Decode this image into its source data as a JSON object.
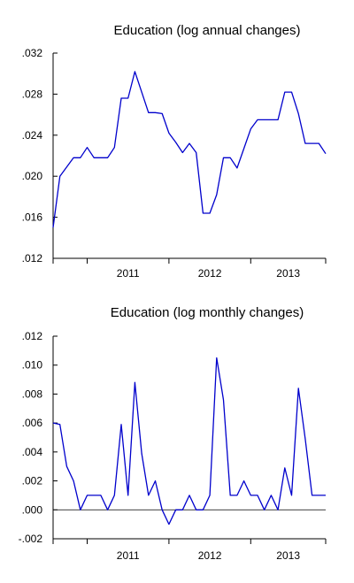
{
  "chart_data": [
    {
      "type": "line",
      "title": "Education (log annual changes)",
      "xlabel": "",
      "ylabel": "",
      "x_start": "2010-08",
      "frequency": "monthly",
      "x_tick_labels": [
        "2011",
        "2012",
        "2013"
      ],
      "y_tick_labels": [
        ".012",
        ".016",
        ".020",
        ".024",
        ".028",
        ".032"
      ],
      "ylim": [
        0.012,
        0.032
      ],
      "grid": false,
      "zero_line": false,
      "color": "#0000cc",
      "series": [
        {
          "values": [
            0.015,
            0.02,
            0.0209,
            0.0218,
            0.0218,
            0.0228,
            0.0218,
            0.0218,
            0.0218,
            0.0228,
            0.0276,
            0.0276,
            0.0302,
            0.0282,
            0.0262,
            0.0262,
            0.0261,
            0.0242,
            0.0233,
            0.0223,
            0.0232,
            0.0223,
            0.0164,
            0.0164,
            0.0182,
            0.0218,
            0.0218,
            0.0208,
            0.0227,
            0.0246,
            0.0255,
            0.0255,
            0.0255,
            0.0255,
            0.0282,
            0.0282,
            0.0261,
            0.0232,
            0.0232,
            0.0232,
            0.0222
          ]
        }
      ]
    },
    {
      "type": "line",
      "title": "Education (log monthly changes)",
      "xlabel": "",
      "ylabel": "",
      "x_start": "2010-08",
      "frequency": "monthly",
      "x_tick_labels": [
        "2011",
        "2012",
        "2013"
      ],
      "y_tick_labels": [
        "-.002",
        ".000",
        ".002",
        ".004",
        ".006",
        ".008",
        ".010",
        ".012"
      ],
      "ylim": [
        -0.002,
        0.012
      ],
      "grid": false,
      "zero_line": true,
      "color": "#0000cc",
      "series": [
        {
          "values": [
            0.006,
            0.0059,
            0.003,
            0.002,
            0.0,
            0.001,
            0.001,
            0.001,
            0.0,
            0.001,
            0.0059,
            0.001,
            0.0088,
            0.0039,
            0.001,
            0.002,
            0.0,
            -0.001,
            0.0,
            0.0,
            0.001,
            0.0,
            0.0,
            0.001,
            0.0105,
            0.0076,
            0.001,
            0.001,
            0.002,
            0.001,
            0.001,
            0.0,
            0.001,
            0.0,
            0.0029,
            0.001,
            0.0084,
            0.0049,
            0.001,
            0.001,
            0.001
          ]
        }
      ]
    }
  ]
}
